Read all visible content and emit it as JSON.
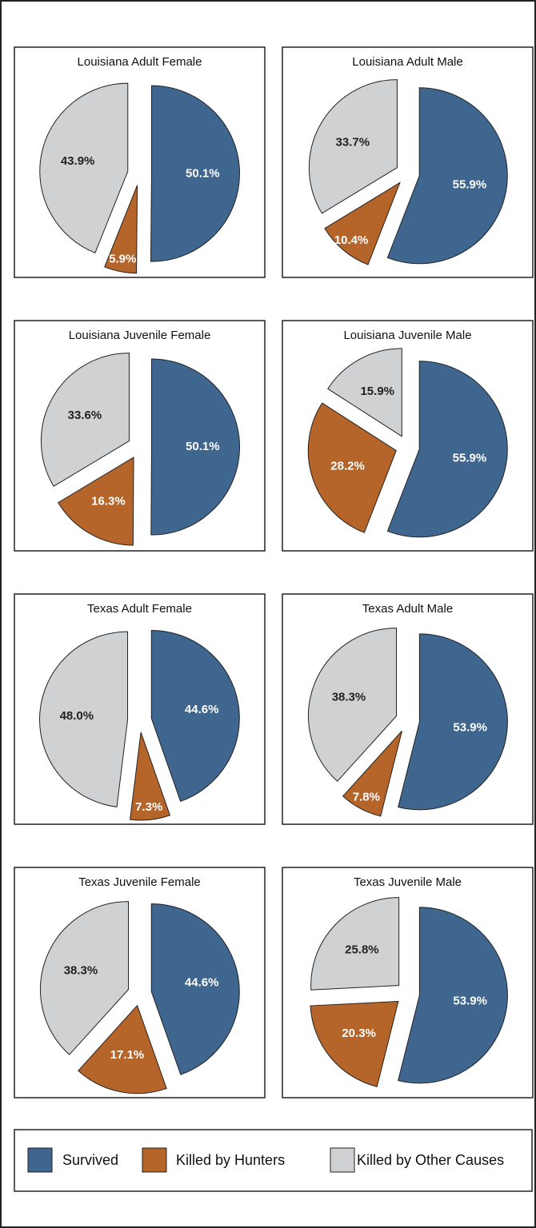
{
  "chart_data": [
    {
      "type": "pie",
      "title": "Louisiana Adult Female",
      "values": [
        50.1,
        5.9,
        43.9
      ],
      "value_labels": [
        "50.1%",
        "5.9%",
        "43.9%"
      ]
    },
    {
      "type": "pie",
      "title": "Louisiana Adult Male",
      "values": [
        55.9,
        10.4,
        33.7
      ],
      "value_labels": [
        "55.9%",
        "10.4%",
        "33.7%"
      ]
    },
    {
      "type": "pie",
      "title": "Louisiana Juvenile Female",
      "values": [
        50.1,
        16.3,
        33.6
      ],
      "value_labels": [
        "50.1%",
        "16.3%",
        "33.6%"
      ]
    },
    {
      "type": "pie",
      "title": "Louisiana Juvenile Male",
      "values": [
        55.9,
        28.2,
        15.9
      ],
      "value_labels": [
        "55.9%",
        "28.2%",
        "15.9%"
      ]
    },
    {
      "type": "pie",
      "title": "Texas Adult Female",
      "values": [
        44.6,
        7.3,
        48
      ],
      "value_labels": [
        "44.6%",
        "7.3%",
        "48.0%"
      ]
    },
    {
      "type": "pie",
      "title": "Texas Adult Male",
      "values": [
        53.9,
        7.8,
        38.3
      ],
      "value_labels": [
        "53.9%",
        "7.8%",
        "38.3%"
      ]
    },
    {
      "type": "pie",
      "title": "Texas Juvenile Female",
      "values": [
        44.6,
        17.1,
        38.3
      ],
      "value_labels": [
        "44.6%",
        "17.1%",
        "38.3%"
      ]
    },
    {
      "type": "pie",
      "title": "Texas Juvenile Male",
      "values": [
        53.9,
        20.3,
        25.8
      ],
      "value_labels": [
        "53.9%",
        "20.3%",
        "25.8%"
      ]
    }
  ],
  "legend": {
    "categories": [
      "Survived",
      "Killed by Hunters",
      "Killed by Other Causes"
    ],
    "colors": [
      "#3f668f",
      "#b5652a",
      "#d0d1d3"
    ],
    "label_colors": [
      "#ffffff",
      "#ffffff",
      "#222222"
    ]
  }
}
